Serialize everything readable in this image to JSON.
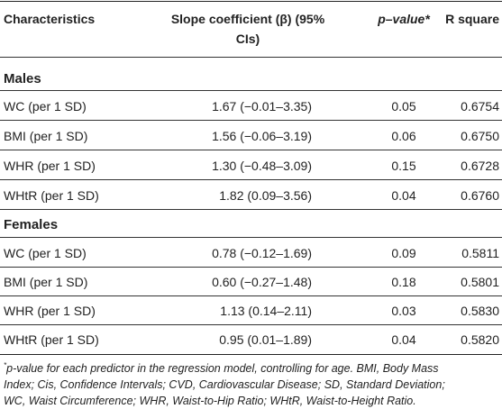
{
  "header": {
    "col1": "Characteristics",
    "col2_line1": "Slope coefficient (β) (95%",
    "col2_line2": "CIs)",
    "col3": "p–value*",
    "col4": "R square"
  },
  "sections": [
    {
      "title": "Males",
      "rows": [
        {
          "label": "WC (per 1 SD)",
          "slope": "1.67 (−0.01–3.35)",
          "p": "0.05",
          "r2": "0.6754"
        },
        {
          "label": "BMI (per 1 SD)",
          "slope": "1.56 (−0.06–3.19)",
          "p": "0.06",
          "r2": "0.6750"
        },
        {
          "label": "WHR (per 1 SD)",
          "slope": "1.30 (−0.48–3.09)",
          "p": "0.15",
          "r2": "0.6728"
        },
        {
          "label": "WHtR (per 1 SD)",
          "slope": "1.82 (0.09–3.56)",
          "p": "0.04",
          "r2": "0.6760"
        }
      ]
    },
    {
      "title": "Females",
      "rows": [
        {
          "label": "WC (per 1 SD)",
          "slope": "0.78 (−0.12–1.69)",
          "p": "0.09",
          "r2": "0.5811"
        },
        {
          "label": "BMI (per 1 SD)",
          "slope": "0.60 (−0.27–1.48)",
          "p": "0.18",
          "r2": "0.5801"
        },
        {
          "label": "WHR (per 1 SD)",
          "slope": "1.13 (0.14–2.11)",
          "p": "0.03",
          "r2": "0.5830"
        },
        {
          "label": "WHtR (per 1 SD)",
          "slope": "0.95 (0.01–1.89)",
          "p": "0.04",
          "r2": "0.5820"
        }
      ]
    }
  ],
  "footnote": {
    "mark": "*",
    "line1": "p-value for each predictor in the regression model, controlling for age. BMI, Body Mass",
    "line2": "Index; Cis, Confidence Intervals; CVD, Cardiovascular Disease; SD, Standard Deviation;",
    "line3": "WC, Waist Circumference; WHR, Waist-to-Hip Ratio; WHtR, Waist-to-Height Ratio."
  }
}
